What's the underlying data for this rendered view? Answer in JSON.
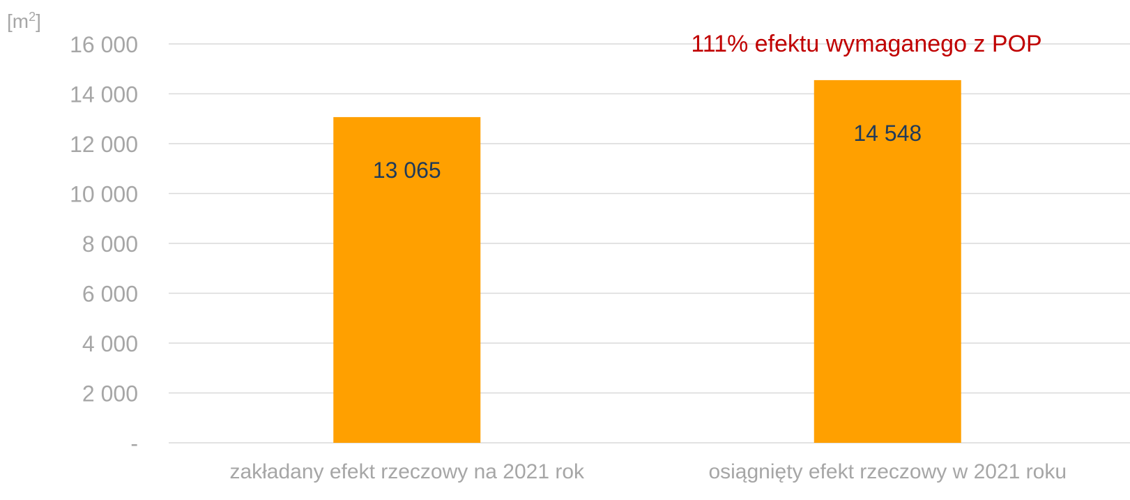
{
  "chart_data": {
    "type": "bar",
    "categories": [
      "zakładany efekt rzeczowy na 2021 rok",
      "osiągnięty efekt rzeczowy w 2021 roku"
    ],
    "values": [
      13065,
      14548
    ],
    "value_labels": [
      "13 065",
      "14 548"
    ],
    "ylabel": "[m²]",
    "ylabel_base": "[m",
    "ylabel_sup": "2",
    "ylabel_end": "]",
    "ylim": [
      0,
      16000
    ],
    "yticks": [
      0,
      2000,
      4000,
      6000,
      8000,
      10000,
      12000,
      14000,
      16000
    ],
    "ytick_labels": [
      "-",
      "2 000",
      "4 000",
      "6 000",
      "8 000",
      "10 000",
      "12 000",
      "14 000",
      "16 000"
    ],
    "grid": true,
    "legend": "none",
    "annotation": "111% efektu wymaganego z POP",
    "colors": {
      "bar": "#FFA000",
      "grid": "#D9D9D9",
      "tick_text": "#A6A6A6",
      "value_text": "#1F3A5A",
      "annotation": "#C00000"
    }
  }
}
